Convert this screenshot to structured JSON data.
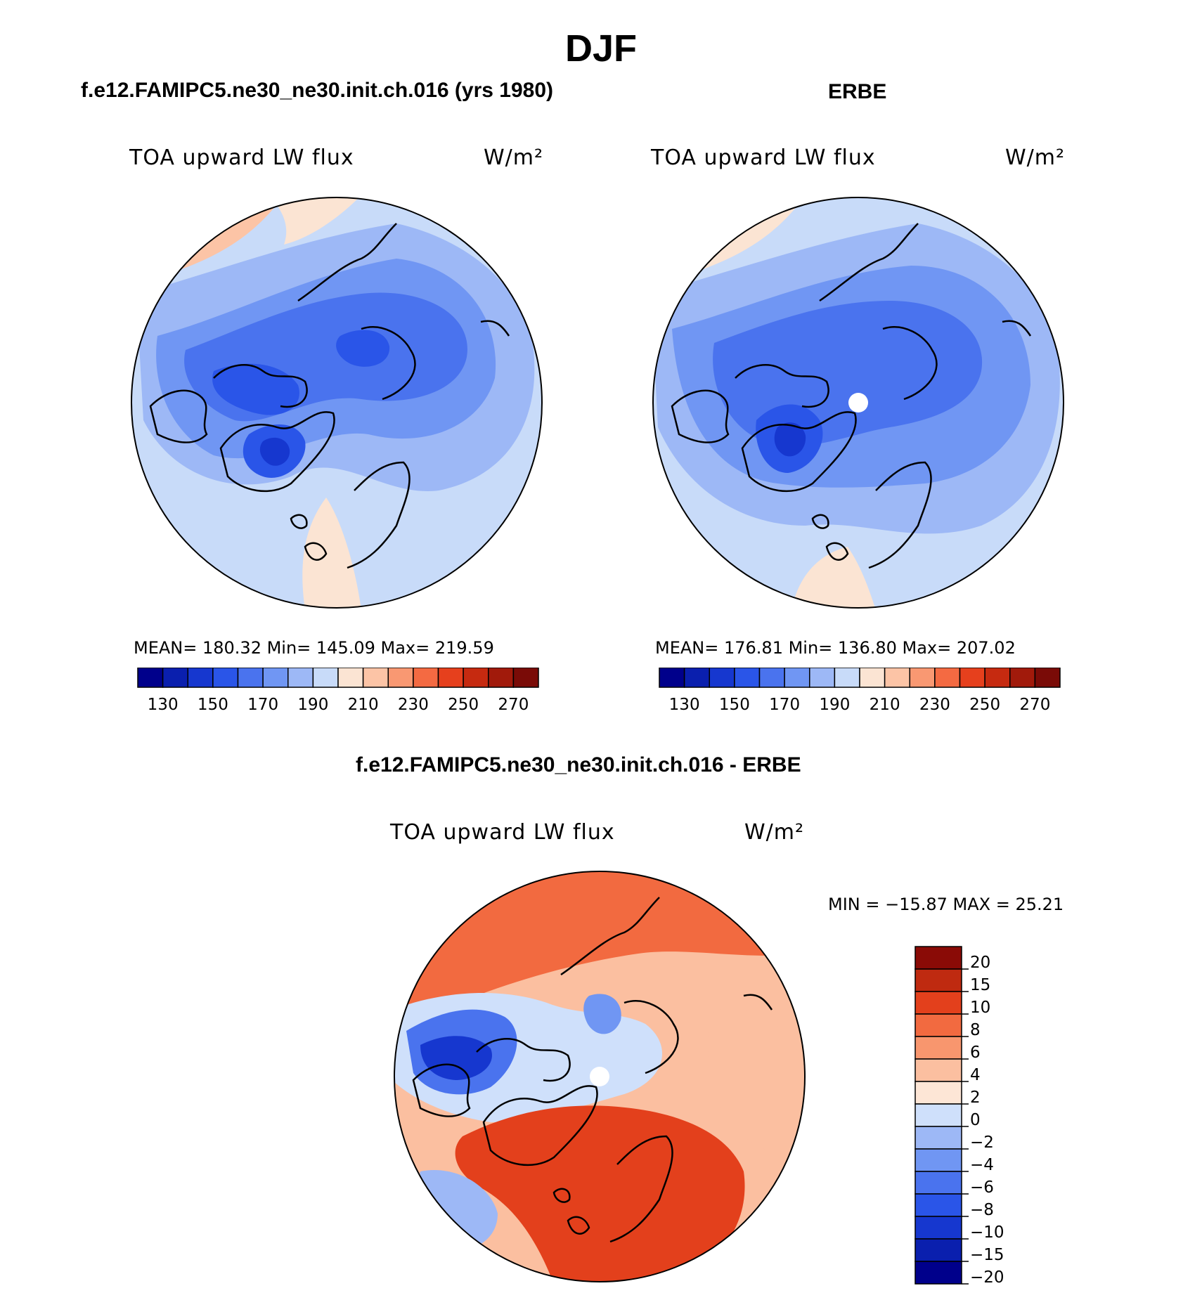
{
  "figure": {
    "title": "DJF"
  },
  "panels": [
    {
      "title": "f.e12.FAMIPC5.ne30_ne30.init.ch.016 (yrs 1980)",
      "variable": "TOA upward LW flux",
      "units": "W/m²",
      "stats": "MEAN=  180.32    Min=  145.09    Max=  219.59"
    },
    {
      "title": "ERBE",
      "variable": "TOA upward LW flux",
      "units": "W/m²",
      "stats": "MEAN=  176.81    Min=  136.80    Max=  207.02"
    },
    {
      "title": "f.e12.FAMIPC5.ne30_ne30.init.ch.016 - ERBE",
      "variable": "TOA upward LW flux",
      "units": "W/m²",
      "stats": "MIN  =  −15.87  MAX  =    25.21"
    }
  ],
  "chart_data": [
    {
      "type": "heatmap",
      "title": "f.e12.FAMIPC5.ne30_ne30.init.ch.016 (yrs 1980)",
      "subtitle": "TOA upward LW flux",
      "units": "W/m²",
      "projection": "north polar stereographic",
      "stats": {
        "mean": 180.32,
        "min": 145.09,
        "max": 219.59
      },
      "colorbar": {
        "levels": [
          130,
          140,
          150,
          160,
          170,
          180,
          190,
          200,
          210,
          220,
          230,
          240,
          250,
          260,
          270
        ],
        "tick_labels": [
          "130",
          "150",
          "170",
          "190",
          "210",
          "230",
          "250",
          "270"
        ],
        "orientation": "horizontal"
      }
    },
    {
      "type": "heatmap",
      "title": "ERBE",
      "subtitle": "TOA upward LW flux",
      "units": "W/m²",
      "projection": "north polar stereographic",
      "stats": {
        "mean": 176.81,
        "min": 136.8,
        "max": 207.02
      },
      "colorbar": {
        "levels": [
          130,
          140,
          150,
          160,
          170,
          180,
          190,
          200,
          210,
          220,
          230,
          240,
          250,
          260,
          270
        ],
        "tick_labels": [
          "130",
          "150",
          "170",
          "190",
          "210",
          "230",
          "250",
          "270"
        ],
        "orientation": "horizontal"
      }
    },
    {
      "type": "heatmap",
      "title": "f.e12.FAMIPC5.ne30_ne30.init.ch.016 - ERBE",
      "subtitle": "TOA upward LW flux",
      "units": "W/m²",
      "projection": "north polar stereographic",
      "stats": {
        "min": -15.87,
        "max": 25.21
      },
      "colorbar": {
        "levels": [
          -20,
          -15,
          -10,
          -8,
          -6,
          -4,
          -2,
          0,
          2,
          4,
          6,
          8,
          10,
          15,
          20
        ],
        "tick_labels": [
          "20",
          "15",
          "10",
          "8",
          "6",
          "4",
          "2",
          "0",
          "−2",
          "−4",
          "−6",
          "−8",
          "−10",
          "−15",
          "−20"
        ],
        "orientation": "vertical"
      }
    }
  ],
  "colors": {
    "abs_scale": [
      "#00008b",
      "#0a1fae",
      "#1637cf",
      "#2a55e8",
      "#4a73ee",
      "#7096f3",
      "#9db8f6",
      "#c8dbf9",
      "#fbe4d3",
      "#fcc4a6",
      "#f99872",
      "#f46a42",
      "#e6401d",
      "#c62a10",
      "#a11a0b",
      "#7a0b07"
    ],
    "diff_scale": [
      "#00008b",
      "#0a1fae",
      "#1637cf",
      "#2a55e8",
      "#4a73ee",
      "#7096f3",
      "#9db8f6",
      "#cfe0fb",
      "#fde6d6",
      "#fbbfa0",
      "#f8966e",
      "#f26a40",
      "#e3401c",
      "#bf2a10",
      "#8a0b06"
    ]
  }
}
